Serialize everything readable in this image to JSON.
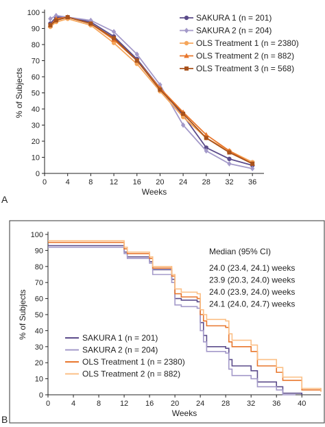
{
  "chart_data": [
    {
      "type": "line",
      "panel_label": "A",
      "xlabel": "Weeks",
      "ylabel": "% of Subjects",
      "xlim": [
        0,
        38
      ],
      "ylim": [
        0,
        100
      ],
      "xticks": [
        0,
        4,
        8,
        12,
        16,
        20,
        24,
        28,
        32,
        36
      ],
      "yticks": [
        0,
        10,
        20,
        30,
        40,
        50,
        60,
        70,
        80,
        90,
        100
      ],
      "grid": false,
      "legend_position": "top-right",
      "series": [
        {
          "name": "SAKURA 1 (n = 201)",
          "color": "#5b4b8a",
          "marker": "circle",
          "x": [
            1,
            2,
            4,
            8,
            12,
            16,
            20,
            24,
            28,
            32,
            36
          ],
          "y": [
            93,
            97,
            97,
            94,
            85,
            71,
            53,
            36,
            16,
            9,
            5
          ]
        },
        {
          "name": "SAKURA 2 (n = 204)",
          "color": "#a399c9",
          "marker": "diamond",
          "x": [
            1,
            2,
            4,
            8,
            12,
            16,
            20,
            24,
            28,
            32,
            36
          ],
          "y": [
            96,
            98,
            97,
            95,
            88,
            74,
            55,
            30,
            14,
            6,
            3
          ]
        },
        {
          "name": "OLS Treatment 1 (n = 2380)",
          "color": "#f5a65b",
          "marker": "circle",
          "x": [
            1,
            2,
            4,
            8,
            12,
            16,
            20,
            24,
            28,
            32,
            36
          ],
          "y": [
            91,
            94,
            96,
            92,
            81,
            68,
            51,
            35,
            22,
            14,
            7
          ]
        },
        {
          "name": "OLS Treatment 2 (n = 882)",
          "color": "#e8762c",
          "marker": "triangle",
          "x": [
            1,
            2,
            4,
            8,
            12,
            16,
            20,
            24,
            28,
            32,
            36
          ],
          "y": [
            92,
            96,
            97,
            93,
            83,
            70,
            53,
            38,
            24,
            14,
            6
          ]
        },
        {
          "name": "OLS Treatment 3 (n = 568)",
          "color": "#a8521c",
          "marker": "square",
          "x": [
            1,
            2,
            4,
            8,
            12,
            16,
            20,
            24,
            28,
            32,
            36
          ],
          "y": [
            92,
            95,
            97,
            93,
            84,
            70,
            52,
            37,
            22,
            13,
            6
          ]
        }
      ]
    },
    {
      "type": "line",
      "subtype": "kaplan-meier",
      "panel_label": "B",
      "xlabel": "Weeks",
      "ylabel": "% of Subjects",
      "xlim": [
        0,
        43
      ],
      "ylim": [
        0,
        100
      ],
      "xticks": [
        0,
        4,
        8,
        12,
        16,
        20,
        24,
        28,
        32,
        36,
        40
      ],
      "yticks": [
        0,
        10,
        20,
        30,
        40,
        50,
        60,
        70,
        80,
        90,
        100
      ],
      "grid": false,
      "legend_position": "bottom-left",
      "annotation_title": "Median (95% CI)",
      "annotations": [
        "24.0 (23.4, 24.1) weeks",
        "23.9 (20.3, 24.0) weeks",
        "24.0 (23.9, 24.0) weeks",
        "24.1 (24.0, 24.7) weeks"
      ],
      "series": [
        {
          "name": "SAKURA 1 (n = 201)",
          "color": "#5b4b8a",
          "x": [
            0,
            8,
            12,
            12.5,
            16,
            16.5,
            19.5,
            20,
            21,
            23.5,
            24,
            24.5,
            25,
            28,
            28.5,
            29,
            32,
            33,
            36,
            37,
            40
          ],
          "y": [
            93,
            93,
            89,
            86,
            83,
            78,
            72,
            60,
            59,
            58,
            45,
            37,
            30,
            29,
            22,
            18,
            15,
            8,
            5,
            1,
            0
          ]
        },
        {
          "name": "SAKURA 2 (n = 204)",
          "color": "#a399c9",
          "x": [
            0,
            8,
            12,
            12.5,
            16,
            16.5,
            19.5,
            20,
            21,
            23.5,
            24,
            24.5,
            25,
            28,
            28.5,
            29,
            32,
            33,
            36,
            37,
            39
          ],
          "y": [
            92,
            92,
            88,
            85,
            82,
            75,
            70,
            56,
            55,
            54,
            40,
            33,
            27,
            26,
            16,
            12,
            10,
            5,
            3,
            0,
            0
          ]
        },
        {
          "name": "OLS Treatment 1 (n = 2380)",
          "color": "#e8762c",
          "x": [
            0,
            8,
            12,
            12.5,
            16,
            16.5,
            19.5,
            20,
            21,
            23.5,
            24,
            24.5,
            25,
            28,
            28.5,
            29,
            32,
            33,
            36,
            37,
            40,
            43
          ],
          "y": [
            95,
            95,
            91,
            88,
            85,
            79,
            74,
            63,
            61,
            60,
            50,
            46,
            43,
            42,
            33,
            30,
            27,
            18,
            14,
            9,
            3,
            2
          ]
        },
        {
          "name": "OLS Treatment 2 (n = 882)",
          "color": "#fbbf85",
          "x": [
            0,
            8,
            12,
            12.5,
            16,
            16.5,
            19.5,
            20,
            21,
            23.5,
            24,
            24.5,
            25,
            28,
            28.5,
            29,
            32,
            33,
            36,
            37,
            40,
            43
          ],
          "y": [
            96,
            96,
            92,
            89,
            86,
            80,
            75,
            66,
            64,
            63,
            53,
            50,
            47,
            46,
            38,
            34,
            31,
            22,
            17,
            11,
            4,
            2
          ]
        }
      ]
    }
  ]
}
